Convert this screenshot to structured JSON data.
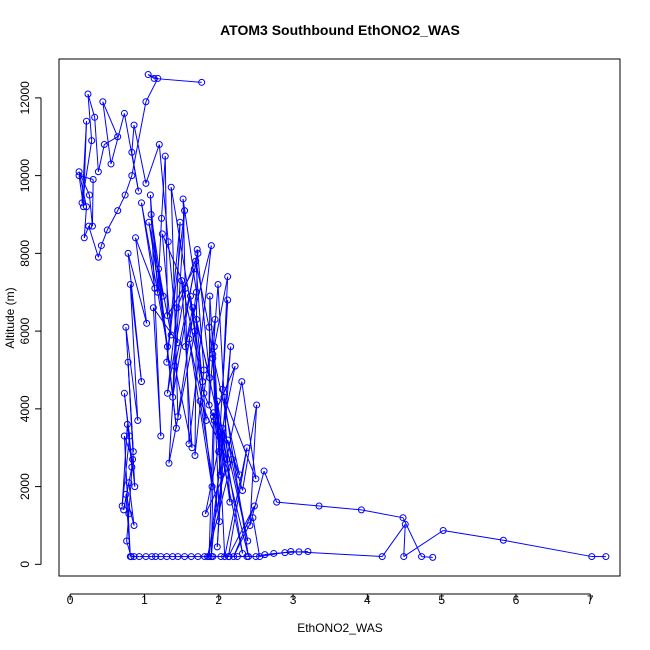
{
  "chart_data": {
    "type": "scatter",
    "title": "ATOM3 Southbound EthONO2_WAS",
    "xlabel": "EthONO2_WAS",
    "ylabel": "Altitude (m)",
    "xlim": [
      -0.15,
      7.4
    ],
    "ylim": [
      -300,
      13000
    ],
    "xticks": [
      0,
      1,
      2,
      3,
      4,
      5,
      6,
      7
    ],
    "yticks": [
      0,
      2000,
      4000,
      6000,
      8000,
      10000,
      12000
    ],
    "grid": false,
    "legend": "none",
    "series_color": "#0000ff",
    "marker": "open-circle",
    "connected": true,
    "series": [
      {
        "x": [
          7.21,
          7.02,
          5.83,
          5.02,
          4.49,
          4.51,
          4.2,
          2.97,
          2.55,
          2.46,
          2.2,
          2.48,
          2.13,
          2.38,
          2.08,
          1.98,
          2.32,
          1.94,
          1.9,
          2.16,
          1.98,
          2.06,
          1.87,
          1.93,
          2.4,
          2.07,
          2.5,
          2.31,
          1.85,
          2.18,
          1.82,
          2.22,
          1.93,
          1.8,
          1.95,
          1.92,
          2.0,
          2.12,
          2.05,
          2.12,
          1.94,
          2.02,
          1.88,
          1.87,
          1.99,
          2.15,
          2.02,
          1.87,
          1.69,
          1.8,
          1.68,
          1.71,
          1.88,
          1.65,
          1.55,
          1.9,
          1.6,
          1.52,
          1.7,
          1.45,
          1.36,
          1.68,
          1.33,
          1.54,
          1.3,
          1.48,
          1.38,
          1.67,
          1.31,
          1.28,
          1.23,
          1.18,
          1.08,
          1.22,
          1.12,
          1.45,
          1.32,
          1.2,
          1.02,
          0.86,
          0.83,
          0.92,
          0.73,
          0.55,
          0.44,
          0.64,
          0.46,
          0.38,
          0.33,
          0.24,
          0.29,
          0.16,
          0.22,
          0.18,
          0.12,
          0.31,
          0.3,
          0.26,
          0.12,
          0.22,
          0.19,
          0.25,
          0.38,
          0.42,
          0.5,
          0.64,
          0.74,
          0.83,
          1.02,
          1.18,
          1.05,
          1.13,
          1.77
        ],
        "y": [
          200,
          200,
          620,
          870,
          200,
          1030,
          200,
          330,
          200,
          1200,
          200,
          1500,
          200,
          3000,
          200,
          4200,
          280,
          3700,
          200,
          5600,
          450,
          3300,
          200,
          3900,
          200,
          4300,
          2200,
          4700,
          200,
          2700,
          1300,
          5100,
          3800,
          4400,
          6300,
          5300,
          2900,
          6800,
          4500,
          7400,
          5600,
          2300,
          6900,
          4100,
          7200,
          1600,
          3400,
          6100,
          7800,
          5000,
          2800,
          8100,
          4800,
          6600,
          5600,
          8200,
          3100,
          9400,
          7000,
          3800,
          9700,
          6000,
          2600,
          9100,
          5200,
          8800,
          4300,
          7600,
          6400,
          10500,
          8900,
          7000,
          9500,
          3300,
          6600,
          5700,
          8300,
          10800,
          9800,
          11300,
          10600,
          9600,
          11600,
          10300,
          11900,
          11000,
          10800,
          10100,
          11500,
          12100,
          10900,
          9300,
          11400,
          9200,
          10000,
          9900,
          8700,
          9500,
          10100,
          9200,
          8400,
          8700,
          7900,
          8200,
          8600,
          9100,
          9500,
          10000,
          11900,
          12500,
          12600,
          12500,
          12400
        ]
      },
      {
        "x": [
          4.88,
          4.73,
          4.48,
          3.92,
          3.35,
          2.78,
          2.61,
          2.42,
          2.51,
          2.32,
          2.12,
          2.39,
          2.05,
          2.28,
          1.92,
          2.01,
          1.75,
          2.11,
          1.7,
          1.83,
          1.6,
          1.91,
          1.62,
          1.78,
          1.5,
          1.64,
          1.41,
          1.72,
          1.44,
          1.31,
          1.55,
          1.24,
          1.36,
          1.19,
          1.43,
          1.09,
          1.25,
          1.06,
          1.31,
          0.96,
          1.14,
          0.88,
          1.03,
          0.78,
          0.96,
          0.81,
          0.91,
          0.75,
          0.85,
          0.78,
          0.87,
          0.73,
          0.8,
          0.7,
          0.77,
          0.83,
          0.72,
          0.79,
          0.86,
          0.75,
          0.81,
          0.73,
          0.84,
          0.79,
          0.76,
          0.82
        ],
        "y": [
          180,
          200,
          1200,
          1400,
          1500,
          1600,
          2400,
          1000,
          4100,
          1900,
          3200,
          600,
          3500,
          2300,
          5400,
          1100,
          4200,
          2700,
          6300,
          3700,
          5800,
          2000,
          6900,
          4700,
          7300,
          3000,
          5100,
          8000,
          6600,
          4400,
          7100,
          8500,
          5900,
          7600,
          3500,
          9000,
          6900,
          8800,
          5600,
          9300,
          7100,
          8400,
          6200,
          8000,
          4700,
          7200,
          3700,
          6100,
          2900,
          5200,
          2000,
          4400,
          3300,
          1500,
          3600,
          2500,
          1400,
          2100,
          1000,
          1800,
          200,
          3300,
          2700,
          1300,
          600,
          200
        ]
      },
      {
        "x": [
          0.82,
          0.86,
          0.93,
          1.02,
          1.1,
          1.15,
          1.22,
          1.3,
          1.38,
          1.45,
          1.54,
          1.63,
          1.72,
          1.81,
          1.92,
          2.03,
          2.14,
          2.25,
          2.38,
          2.5,
          2.62,
          2.74,
          2.89,
          3.08,
          3.2
        ],
        "y": [
          200,
          200,
          200,
          200,
          200,
          200,
          200,
          200,
          200,
          200,
          200,
          200,
          200,
          200,
          200,
          200,
          200,
          200,
          200,
          200,
          250,
          280,
          300,
          320,
          330
        ]
      }
    ]
  }
}
